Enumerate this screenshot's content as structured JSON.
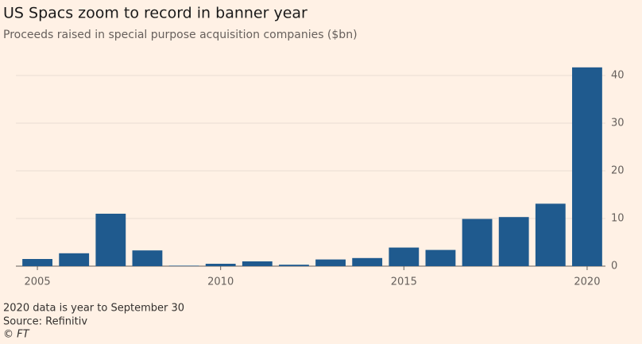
{
  "chart_data": {
    "type": "bar",
    "title": "US Spacs zoom to record in banner year",
    "subtitle": "Proceeds raised in special purpose acquisition companies ($bn)",
    "x": [
      2005,
      2006,
      2007,
      2008,
      2009,
      2010,
      2011,
      2012,
      2013,
      2014,
      2015,
      2016,
      2017,
      2018,
      2019,
      2020
    ],
    "values": [
      1.5,
      2.7,
      11,
      3.3,
      0.1,
      0.5,
      1.0,
      0.3,
      1.4,
      1.7,
      3.9,
      3.4,
      9.9,
      10.3,
      13.1,
      41.7
    ],
    "color": "#1f5a8e",
    "xlim": [
      2004.5,
      2020.5
    ],
    "xticks": [
      2005,
      2010,
      2015,
      2020
    ],
    "ylim": [
      0,
      42
    ],
    "yticks": [
      0,
      10,
      20,
      30,
      40
    ],
    "grid": true,
    "notes": [
      "2020 data is year to September 30",
      "Source: Refinitiv",
      "© FT"
    ]
  }
}
